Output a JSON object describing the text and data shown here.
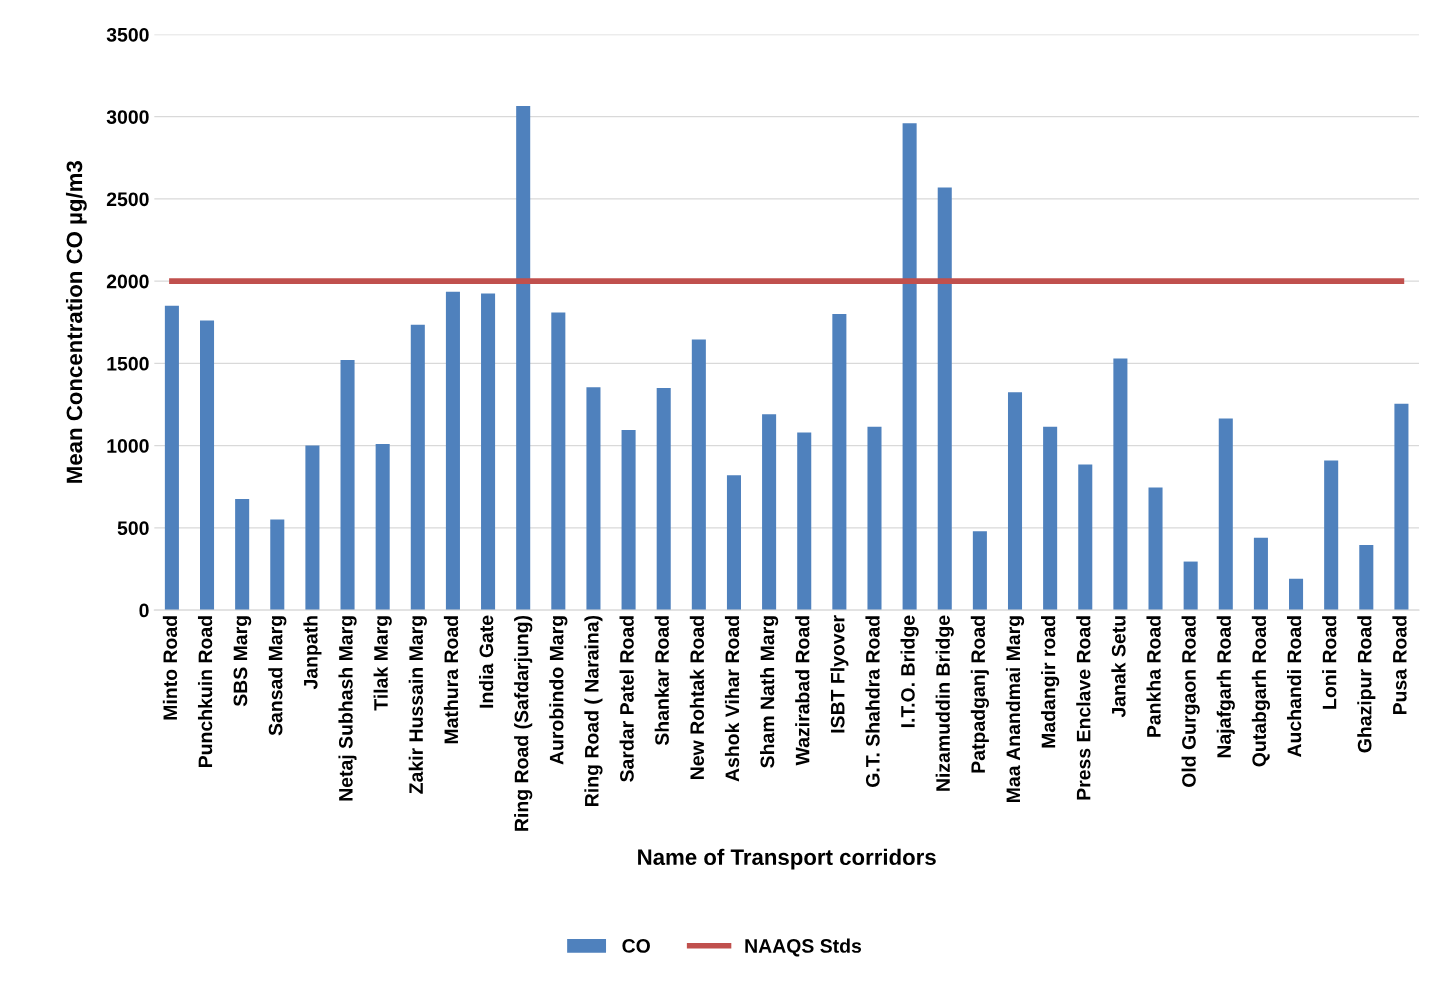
{
  "chart_data": {
    "type": "bar",
    "xlabel": "Name of Transport corridors",
    "ylabel": "Mean Concentration CO µg/m3",
    "categories": [
      "Minto Road",
      "Punchkuin Road",
      "SBS Marg",
      "Sansad Marg",
      "Janpath",
      "Netaj Subhash Marg",
      "Tilak Marg",
      "Zakir Hussain Marg",
      "Mathura Road",
      "India Gate",
      "Ring Road (Safdarjung)",
      "Aurobindo Marg",
      "Ring Road ( Naraina)",
      "Sardar Patel Road",
      "Shankar Road",
      "New Rohtak Road",
      "Ashok Vihar Road",
      "Sham Nath Marg",
      "Wazirabad Road",
      "ISBT Flyover",
      "G.T. Shahdra Road",
      "I.T.O. Bridge",
      "Nizamuddin Bridge",
      "Patpadganj Road",
      "Maa Anandmai Marg",
      "Madangir road",
      "Press Enclave Road",
      "Janak Setu",
      "Pankha Road",
      "Old Gurgaon Road",
      "Najafgarh Road",
      "Qutabgarh Road",
      "Auchandi Road",
      "Loni Road",
      "Ghazipur Road",
      "Pusa Road"
    ],
    "series": [
      {
        "name": "CO",
        "color": "#4f81bd",
        "values": [
          1850,
          1760,
          675,
          550,
          1000,
          1520,
          1010,
          1735,
          1935,
          1925,
          3065,
          1810,
          1355,
          1095,
          1350,
          1645,
          820,
          1190,
          1080,
          1800,
          1115,
          2960,
          2570,
          480,
          1325,
          1115,
          885,
          1530,
          745,
          295,
          1165,
          440,
          190,
          910,
          395,
          1255
        ]
      },
      {
        "name": "NAAQS Stds",
        "type": "line",
        "color": "#c0504d",
        "values": [
          2000,
          2000,
          2000,
          2000,
          2000,
          2000,
          2000,
          2000,
          2000,
          2000,
          2000,
          2000,
          2000,
          2000,
          2000,
          2000,
          2000,
          2000,
          2000,
          2000,
          2000,
          2000,
          2000,
          2000,
          2000,
          2000,
          2000,
          2000,
          2000,
          2000,
          2000,
          2000,
          2000,
          2000,
          2000,
          2000
        ]
      }
    ],
    "ylim": [
      0,
      3500
    ],
    "yticks": [
      0,
      500,
      1000,
      1500,
      2000,
      2500,
      3000,
      3500
    ],
    "grid": "y",
    "legend": "bottom"
  }
}
